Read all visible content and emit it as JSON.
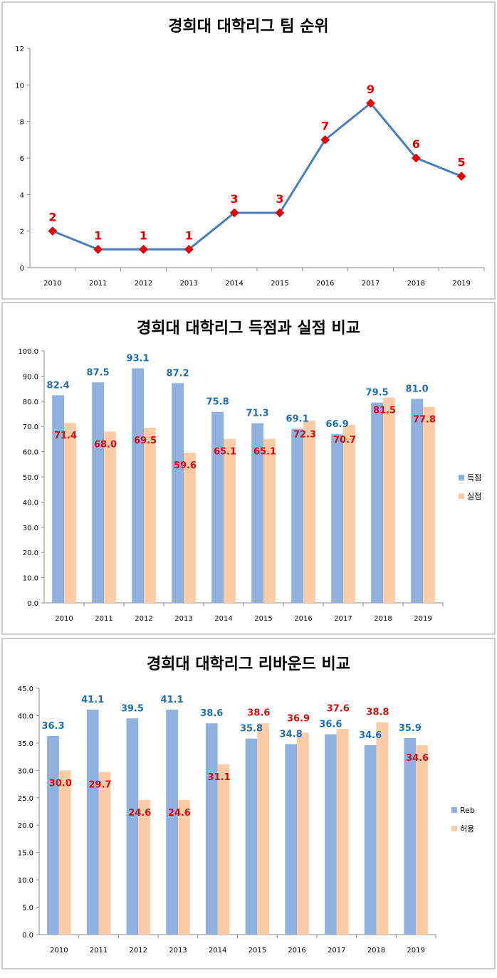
{
  "colors": {
    "line": "#4a7ebb",
    "marker": "#e00000",
    "bar_a": "#8eb1e0",
    "bar_b": "#fbcca6",
    "label_a": "#1f6fb0",
    "label_b": "#d01010"
  },
  "chart_data": [
    {
      "type": "line",
      "title": "경희대 대학리그 팀 순위",
      "categories": [
        "2010",
        "2011",
        "2012",
        "2013",
        "2014",
        "2015",
        "2016",
        "2017",
        "2018",
        "2019"
      ],
      "values": [
        2,
        1,
        1,
        1,
        3,
        3,
        7,
        9,
        6,
        5
      ],
      "ylim": [
        0,
        12
      ],
      "yticks": [
        "0",
        "2",
        "4",
        "6",
        "8",
        "10",
        "12"
      ],
      "xlabel": "",
      "ylabel": ""
    },
    {
      "type": "bar",
      "title": "경희대 대학리그 득점과 실점 비교",
      "categories": [
        "2010",
        "2011",
        "2012",
        "2013",
        "2014",
        "2015",
        "2016",
        "2017",
        "2018",
        "2019"
      ],
      "series": [
        {
          "name": "득점",
          "values": [
            82.4,
            87.5,
            93.1,
            87.2,
            75.8,
            71.3,
            69.1,
            66.9,
            79.5,
            81.0
          ],
          "labels": [
            "82.4",
            "87.5",
            "93.1",
            "87.2",
            "75.8",
            "71.3",
            "69.1",
            "66.9",
            "79.5",
            "81.0"
          ]
        },
        {
          "name": "실점",
          "values": [
            71.4,
            68.0,
            69.5,
            59.6,
            65.1,
            65.1,
            72.3,
            70.7,
            81.5,
            77.8
          ],
          "labels": [
            "71.4",
            "68.0",
            "69.5",
            "59.6",
            "65.1",
            "65.1",
            "72.3",
            "70.7",
            "81.5",
            "77.8"
          ]
        }
      ],
      "ylim": [
        0,
        100
      ],
      "yticks": [
        "0.0",
        "10.0",
        "20.0",
        "30.0",
        "40.0",
        "50.0",
        "60.0",
        "70.0",
        "80.0",
        "90.0",
        "100.0"
      ],
      "legend": "right"
    },
    {
      "type": "bar",
      "title": "경희대 대학리그 리바운드 비교",
      "categories": [
        "2010",
        "2011",
        "2012",
        "2013",
        "2014",
        "2015",
        "2016",
        "2017",
        "2018",
        "2019"
      ],
      "series": [
        {
          "name": "Reb",
          "values": [
            36.3,
            41.1,
            39.5,
            41.1,
            38.6,
            35.8,
            34.8,
            36.6,
            34.6,
            35.9
          ],
          "labels": [
            "36.3",
            "41.1",
            "39.5",
            "41.1",
            "38.6",
            "35.8",
            "34.8",
            "36.6",
            "34.6",
            "35.9"
          ]
        },
        {
          "name": "허용",
          "values": [
            30.0,
            29.7,
            24.6,
            24.6,
            31.1,
            38.6,
            36.9,
            37.6,
            38.8,
            34.6
          ],
          "labels": [
            "30.0",
            "29.7",
            "24.6",
            "24.6",
            "31.1",
            "38.6",
            "36.9",
            "37.6",
            "38.8",
            "34.6"
          ]
        }
      ],
      "ylim": [
        0,
        45
      ],
      "yticks": [
        "0.0",
        "5.0",
        "10.0",
        "15.0",
        "20.0",
        "25.0",
        "30.0",
        "35.0",
        "40.0",
        "45.0"
      ],
      "legend": "right"
    }
  ]
}
